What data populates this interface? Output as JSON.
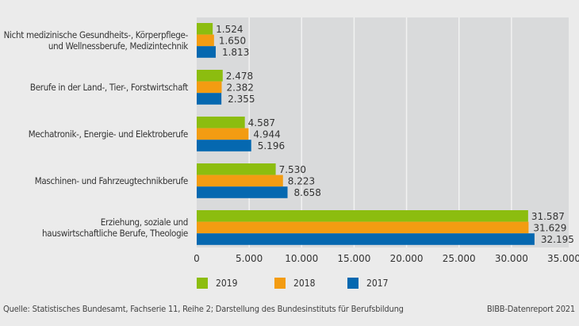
{
  "chart_data": {
    "type": "bar",
    "orientation": "horizontal",
    "categories": [
      "Nicht medizinische Gesundheits-, Körperpflege- und Wellnessberufe, Medizintechnik",
      "Berufe in der Land-, Tier-, Forstwirtschaft",
      "Mechatronik-, Energie- und Elektroberufe",
      "Maschinen- und Fahrzeugtechnikberufe",
      "Erziehung, soziale und hauswirtschaftliche Berufe, Theologie"
    ],
    "category_lines": [
      [
        "Nicht medizinische Gesundheits-, Körperpflege-",
        "und Wellnessberufe, Medizintechnik"
      ],
      [
        "Berufe in der Land-, Tier-, Forstwirtschaft"
      ],
      [
        "Mechatronik-, Energie- und Elektroberufe"
      ],
      [
        "Maschinen- und Fahrzeugtechnikberufe"
      ],
      [
        "Erziehung, soziale und",
        "hauswirtschaftliche Berufe, Theologie"
      ]
    ],
    "series": [
      {
        "name": "2019",
        "color": "#8cbd0f",
        "values": [
          1524,
          2478,
          4587,
          7530,
          31587
        ],
        "labels": [
          "1.524",
          "2.478",
          "4.587",
          "7.530",
          "31.587"
        ]
      },
      {
        "name": "2018",
        "color": "#f39c12",
        "values": [
          1650,
          2382,
          4944,
          8223,
          31629
        ],
        "labels": [
          "1.650",
          "2.382",
          "4.944",
          "8.223",
          "31.629"
        ]
      },
      {
        "name": "2017",
        "color": "#0568b0",
        "values": [
          1813,
          2355,
          5196,
          8658,
          32195
        ],
        "labels": [
          "1.813",
          "2.355",
          "5.196",
          "8.658",
          "32.195"
        ]
      }
    ],
    "xlim": [
      0,
      35000
    ],
    "xticks": [
      0,
      5000,
      10000,
      15000,
      20000,
      25000,
      30000,
      35000
    ],
    "xtick_labels": [
      "0",
      "5.000",
      "10.000",
      "15.000",
      "20.000",
      "25.000",
      "30.000",
      "35.000"
    ],
    "grid": true,
    "legend_position": "bottom-left",
    "plot_background": "#d9dadb"
  },
  "footer": {
    "source": "Quelle: Statistisches Bundesamt, Fachserie 11, Reihe 2; Darstellung des Bundesinstituts für Berufsbildung",
    "report": "BIBB-Datenreport 2021"
  }
}
